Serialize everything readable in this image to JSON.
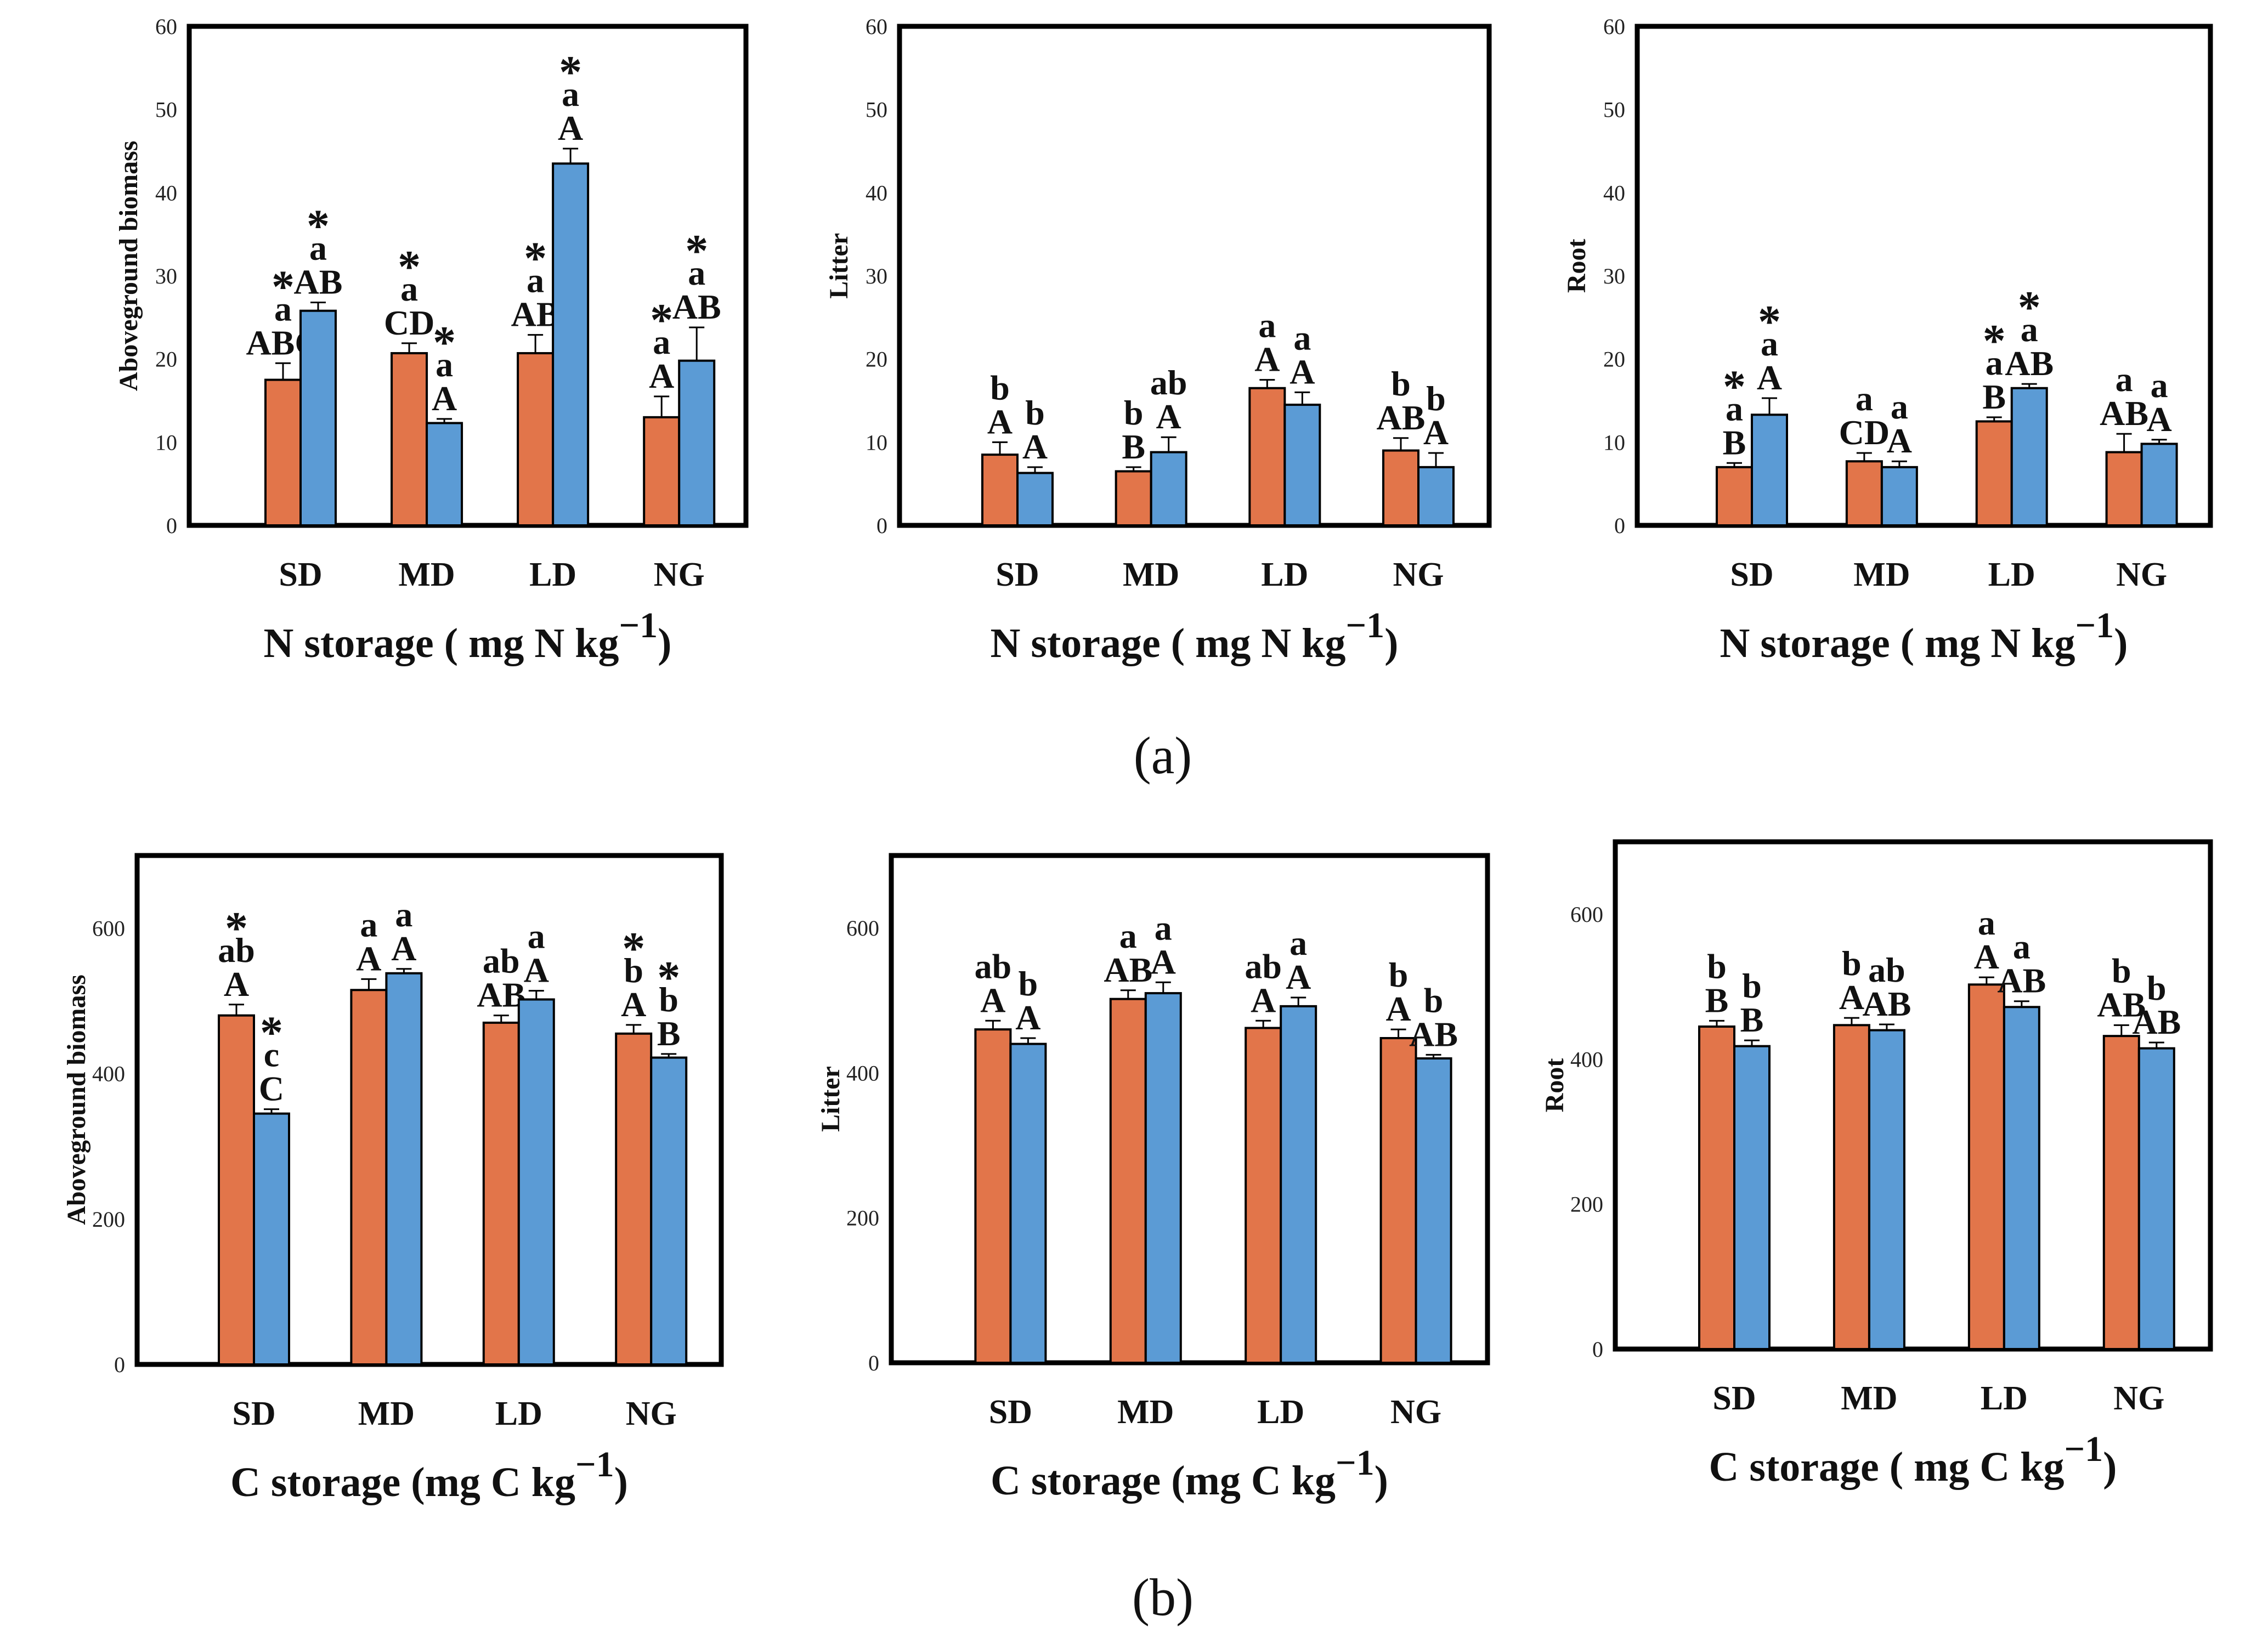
{
  "colors": {
    "series_1": "#E2754A",
    "series_2": "#5B9BD5"
  },
  "figure": {
    "row_labels": [
      "(a)",
      "(b)"
    ]
  },
  "chart_data": [
    {
      "type": "bar",
      "row": 0,
      "col": 0,
      "ylabel": "Aboveground biomass",
      "xlabel": "N storage  ( mg N kg",
      "xlabel_sup": "−1",
      "xlabel_close": ")",
      "categories": [
        "SD",
        "MD",
        "LD",
        "NG"
      ],
      "ylim": [
        0,
        60
      ],
      "yticks": [
        0,
        10,
        20,
        30,
        40,
        50,
        60
      ],
      "series": [
        {
          "values": [
            17.5,
            20.7,
            20.7,
            13.0
          ],
          "errors": [
            2.0,
            1.2,
            2.2,
            2.5
          ]
        },
        {
          "values": [
            25.8,
            12.3,
            43.5,
            19.8
          ],
          "errors": [
            1.0,
            0.5,
            1.8,
            4.0
          ]
        }
      ],
      "annotations": [
        [
          "*\na\nABC",
          "*\na\nAB"
        ],
        [
          "*\na\nCD",
          "*\na\nA"
        ],
        [
          "*\na\nAB",
          "*\na\nA"
        ],
        [
          "*\na\nA",
          "*\na\nAB"
        ]
      ]
    },
    {
      "type": "bar",
      "row": 0,
      "col": 1,
      "ylabel": "Litter",
      "xlabel": "N storage  ( mg N kg",
      "xlabel_sup": "−1",
      "xlabel_close": ")",
      "categories": [
        "SD",
        "MD",
        "LD",
        "NG"
      ],
      "ylim": [
        0,
        60
      ],
      "yticks": [
        0,
        10,
        20,
        30,
        40,
        50,
        60
      ],
      "series": [
        {
          "values": [
            8.5,
            6.5,
            16.5,
            9.0
          ],
          "errors": [
            1.5,
            0.5,
            1.0,
            1.5
          ]
        },
        {
          "values": [
            6.3,
            8.8,
            14.5,
            7.0
          ],
          "errors": [
            0.7,
            1.8,
            1.5,
            1.7
          ]
        }
      ],
      "annotations": [
        [
          "b\nA",
          "b\nA"
        ],
        [
          "b\nB",
          "ab\nA"
        ],
        [
          "a\nA",
          "a\nA"
        ],
        [
          "b\nAB",
          "b\nA"
        ]
      ]
    },
    {
      "type": "bar",
      "row": 0,
      "col": 2,
      "ylabel": "Root",
      "xlabel": "N storage   ( mg N kg",
      "xlabel_sup": "−1",
      "xlabel_close": ")",
      "categories": [
        "SD",
        "MD",
        "LD",
        "NG"
      ],
      "ylim": [
        0,
        60
      ],
      "yticks": [
        0,
        10,
        20,
        30,
        40,
        50,
        60
      ],
      "series": [
        {
          "values": [
            7.0,
            7.7,
            12.5,
            8.8
          ],
          "errors": [
            0.5,
            1.0,
            0.5,
            2.2
          ]
        },
        {
          "values": [
            13.3,
            7.0,
            16.5,
            9.8
          ],
          "errors": [
            2.0,
            0.7,
            0.5,
            0.5
          ]
        }
      ],
      "annotations": [
        [
          "*\na\nB",
          "*\na\nA"
        ],
        [
          "a\nCD",
          "a\nA"
        ],
        [
          "*\na\nB",
          "*\na\nAB"
        ],
        [
          "a\nAB",
          "a\nA"
        ]
      ]
    },
    {
      "type": "bar",
      "row": 1,
      "col": 0,
      "ylabel": "Aboveground biomass",
      "xlabel": "C storage  (mg C kg",
      "xlabel_sup": "−1",
      "xlabel_close": ")",
      "categories": [
        "SD",
        "MD",
        "LD",
        "NG"
      ],
      "ylim": [
        0,
        700
      ],
      "yticks": [
        0,
        200,
        400,
        600
      ],
      "series": [
        {
          "values": [
            480,
            515,
            470,
            455
          ],
          "errors": [
            15,
            15,
            10,
            12
          ]
        },
        {
          "values": [
            345,
            538,
            502,
            422
          ],
          "errors": [
            6,
            6,
            12,
            5
          ]
        }
      ],
      "annotations": [
        [
          "*\nab\nA",
          "*\nc\nC"
        ],
        [
          "a\nA",
          "a\nA"
        ],
        [
          "ab\nAB",
          "a\nA"
        ],
        [
          "*\nb\nA",
          "*\nb\nB"
        ]
      ]
    },
    {
      "type": "bar",
      "row": 1,
      "col": 1,
      "ylabel": "Litter",
      "xlabel": "C storage  (mg C kg",
      "xlabel_sup": "−1",
      "xlabel_close": ")",
      "categories": [
        "SD",
        "MD",
        "LD",
        "NG"
      ],
      "ylim": [
        0,
        700
      ],
      "yticks": [
        0,
        200,
        400,
        600
      ],
      "series": [
        {
          "values": [
            460,
            502,
            462,
            448
          ],
          "errors": [
            12,
            12,
            10,
            12
          ]
        },
        {
          "values": [
            440,
            510,
            492,
            420
          ],
          "errors": [
            8,
            15,
            12,
            5
          ]
        }
      ],
      "annotations": [
        [
          "ab\nA",
          "b\nA"
        ],
        [
          "a\nAB",
          "a\nA"
        ],
        [
          "ab\nA",
          "a\nA"
        ],
        [
          "b\nA",
          "b\nAB"
        ]
      ]
    },
    {
      "type": "bar",
      "row": 1,
      "col": 2,
      "ylabel": "Root",
      "xlabel": "C storage ( mg C kg",
      "xlabel_sup": "−1",
      "xlabel_close": ")",
      "categories": [
        "SD",
        "MD",
        "LD",
        "NG"
      ],
      "ylim": [
        0,
        700
      ],
      "yticks": [
        0,
        200,
        400,
        600
      ],
      "series": [
        {
          "values": [
            445,
            447,
            503,
            432
          ],
          "errors": [
            8,
            10,
            10,
            15
          ]
        },
        {
          "values": [
            418,
            440,
            472,
            415
          ],
          "errors": [
            8,
            8,
            8,
            8
          ]
        }
      ],
      "annotations": [
        [
          "b\nB",
          "b\nB"
        ],
        [
          "b\nA",
          "ab\nAB"
        ],
        [
          "a\nA",
          "a\nAB"
        ],
        [
          "b\nAB",
          "b\nAB"
        ]
      ]
    }
  ]
}
